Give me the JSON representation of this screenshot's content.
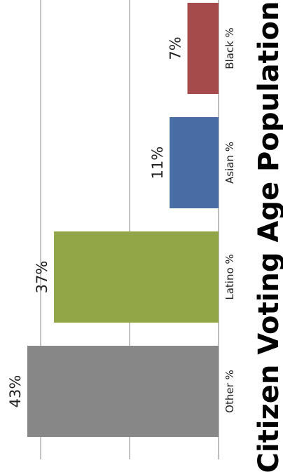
{
  "chart_data": {
    "type": "bar",
    "title": "Citizen Voting Age Population",
    "categories": [
      "Other %",
      "Latino %",
      "Asian %",
      "Black %"
    ],
    "values": [
      43,
      37,
      11,
      7
    ],
    "data_labels": [
      "43%",
      "37%",
      "11%",
      "7%"
    ],
    "colors": [
      "#878787",
      "#92a648",
      "#476da4",
      "#a54b4b"
    ],
    "ylim": [
      0,
      50
    ],
    "grid": true,
    "gridline_values": [
      0,
      20,
      40
    ],
    "axis_labels_shown": false,
    "orientation": "rotated-90-clockwise",
    "legend": "none"
  }
}
